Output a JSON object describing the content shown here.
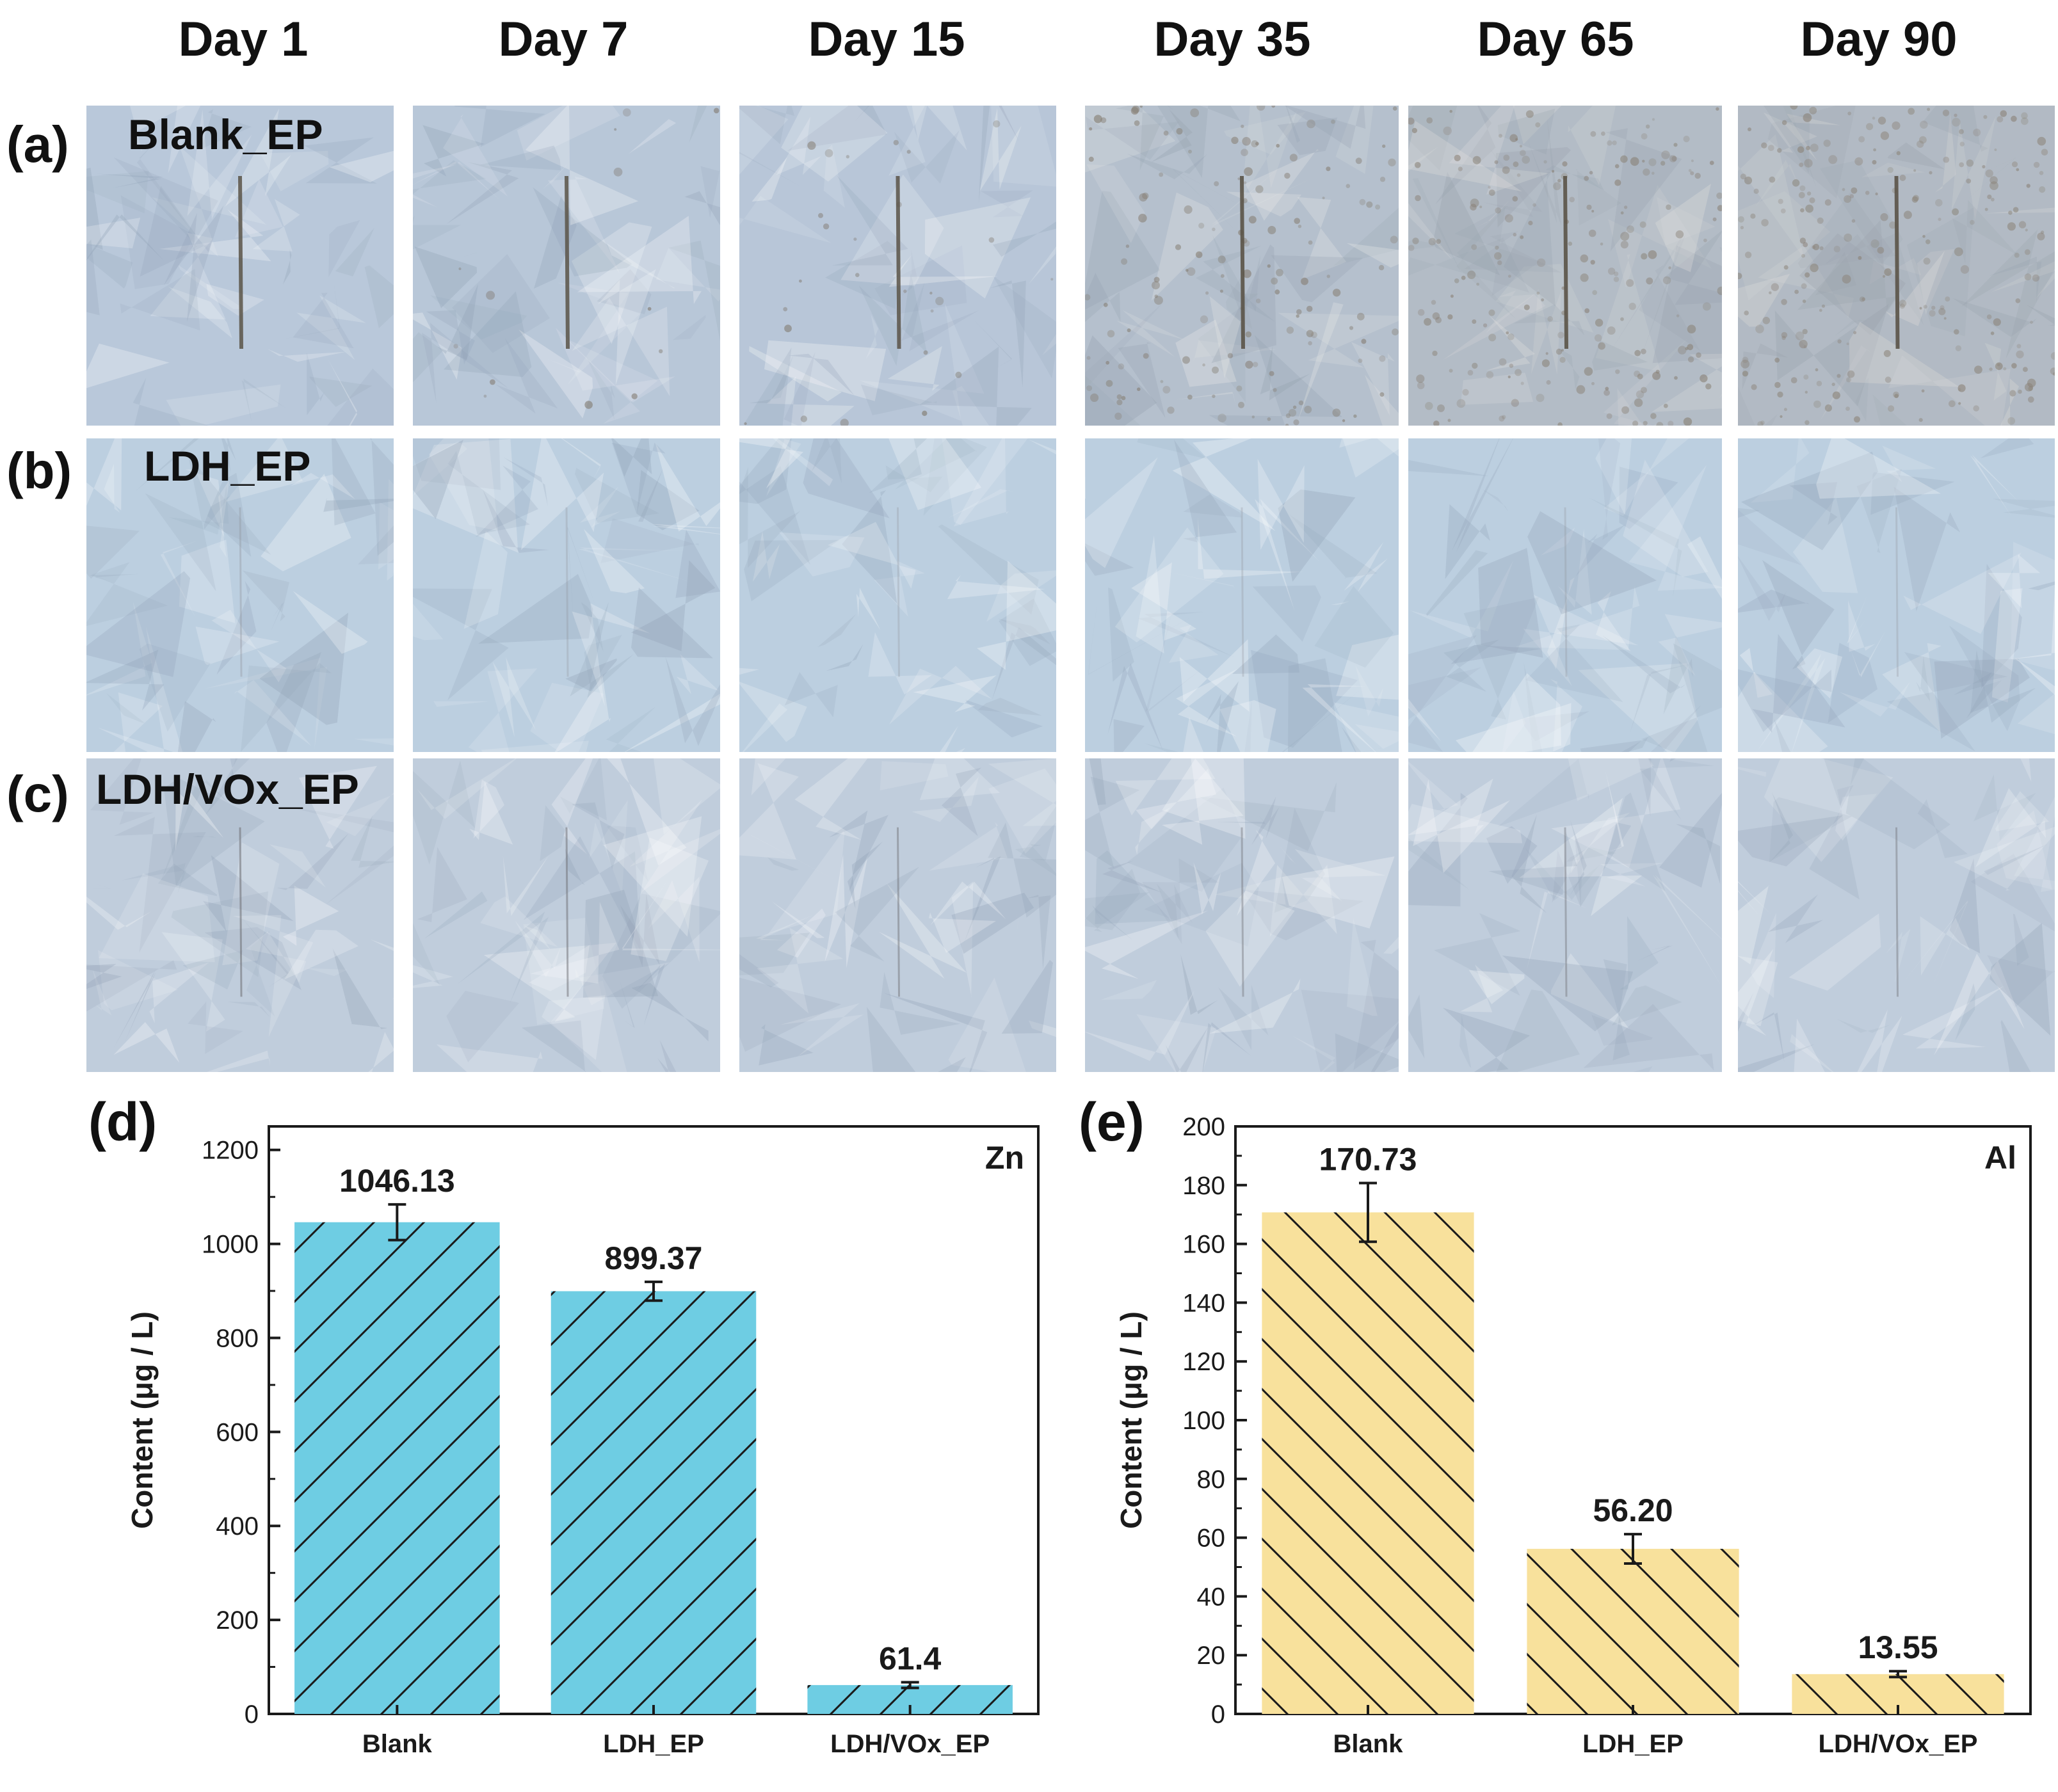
{
  "days": [
    "Day 1",
    "Day 7",
    "Day 15",
    "Day 35",
    "Day 65",
    "Day 90"
  ],
  "rows": [
    {
      "label": "(a)",
      "sample": "Blank_EP",
      "tint": "#b9c8da",
      "scratch": "#5b5448",
      "scratch_strength": [
        0.85,
        0.85,
        0.85,
        0.9,
        0.9,
        0.9
      ]
    },
    {
      "label": "(b)",
      "sample": "LDH_EP",
      "tint": "#bccfe0",
      "scratch": "#8a8a90",
      "scratch_strength": [
        0.3,
        0.25,
        0.25,
        0.25,
        0.25,
        0.25
      ]
    },
    {
      "label": "(c)",
      "sample": "LDH/VOx_EP",
      "tint": "#c0cddc",
      "scratch": "#6d6d72",
      "scratch_strength": [
        0.55,
        0.5,
        0.45,
        0.4,
        0.4,
        0.4
      ]
    }
  ],
  "chart_data": [
    {
      "panel": "(d)",
      "type": "bar",
      "corner_label": "Zn",
      "categories": [
        "Blank",
        "LDH_EP",
        "LDH/VOx_EP"
      ],
      "values": [
        1046.13,
        899.37,
        61.4
      ],
      "data_labels": [
        "1046.13",
        "899.37",
        "61.4"
      ],
      "errors": [
        38,
        20,
        6
      ],
      "ylabel": "Content (μg / L)",
      "ylim": [
        0,
        1250
      ],
      "yticks": [
        0,
        200,
        400,
        600,
        800,
        1000,
        1200
      ],
      "bar_color": "#6ecde3",
      "hatch": "forward"
    },
    {
      "panel": "(e)",
      "type": "bar",
      "corner_label": "Al",
      "categories": [
        "Blank",
        "LDH_EP",
        "LDH/VOx_EP"
      ],
      "values": [
        170.73,
        56.2,
        13.55
      ],
      "data_labels": [
        "170.73",
        "56.20",
        "13.55"
      ],
      "errors": [
        10,
        5,
        1
      ],
      "ylabel": "Content (μg / L)",
      "ylim": [
        0,
        200
      ],
      "yticks": [
        0,
        20,
        40,
        60,
        80,
        100,
        120,
        140,
        160,
        180,
        200
      ],
      "bar_color": "#f8e19c",
      "hatch": "backward"
    }
  ]
}
